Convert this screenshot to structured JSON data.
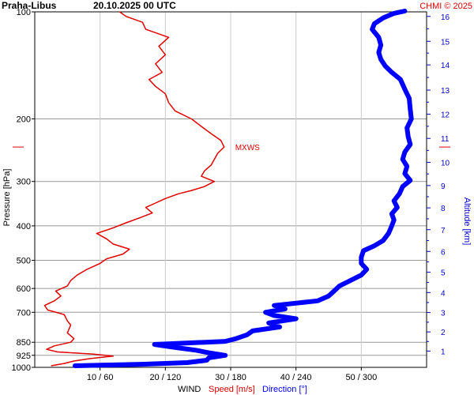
{
  "header": {
    "station": "Praha-Libus",
    "datetime": "20.10.2025 00 UTC",
    "credit": "CHMI © 2025"
  },
  "colors": {
    "speed": "#e00000",
    "direction": "#0000ff",
    "altitude": "#0000cc",
    "grid": "#999999",
    "gridLight": "#cccccc"
  },
  "chart_data": {
    "type": "line",
    "y_scale": "log",
    "ylim": [
      1000,
      100
    ],
    "ylabel": "Pressure [hPa]",
    "y_ticks": [
      {
        "value": 100,
        "label": "100"
      },
      {
        "value": 200,
        "label": "200"
      },
      {
        "value": 300,
        "label": "300"
      },
      {
        "value": 400,
        "label": "400"
      },
      {
        "value": 500,
        "label": "500"
      },
      {
        "value": 600,
        "label": "600"
      },
      {
        "value": 700,
        "label": "700"
      },
      {
        "value": 850,
        "label": "850"
      },
      {
        "value": 925,
        "label": "925"
      },
      {
        "value": 1000,
        "label": "1000"
      }
    ],
    "xlim_speed": [
      0,
      60
    ],
    "xlim_direction": [
      0,
      360
    ],
    "x_ticks": [
      {
        "speed": 10,
        "direction": 60,
        "label": "10 / 60"
      },
      {
        "speed": 20,
        "direction": 120,
        "label": "20 / 120"
      },
      {
        "speed": 30,
        "direction": 180,
        "label": "30 / 180"
      },
      {
        "speed": 40,
        "direction": 240,
        "label": "40 / 240"
      },
      {
        "speed": 50,
        "direction": 300,
        "label": "50 / 300"
      }
    ],
    "xlabel": {
      "prefix": "WIND",
      "speed": "Speed [m/s]",
      "direction": "Direction [°]"
    },
    "y2label": "Altitude [km]",
    "altitude_ticks_km": [
      {
        "km": 1,
        "pressure": 900
      },
      {
        "km": 2,
        "pressure": 795
      },
      {
        "km": 3,
        "pressure": 701
      },
      {
        "km": 4,
        "pressure": 616
      },
      {
        "km": 5,
        "pressure": 540
      },
      {
        "km": 6,
        "pressure": 472
      },
      {
        "km": 7,
        "pressure": 410
      },
      {
        "km": 8,
        "pressure": 356
      },
      {
        "km": 9,
        "pressure": 308
      },
      {
        "km": 10,
        "pressure": 265
      },
      {
        "km": 11,
        "pressure": 227
      },
      {
        "km": 12,
        "pressure": 194
      },
      {
        "km": 13,
        "pressure": 166
      },
      {
        "km": 14,
        "pressure": 141
      },
      {
        "km": 15,
        "pressure": 121
      },
      {
        "km": 16,
        "pressure": 103
      }
    ],
    "mxws": {
      "label": "MXWS",
      "pressure": 240,
      "speed": 29
    },
    "series": [
      {
        "name": "Speed [m/s]",
        "points": [
          [
            990,
            2.5
          ],
          [
            975,
            4.5
          ],
          [
            960,
            6.0
          ],
          [
            945,
            8.5
          ],
          [
            930,
            12.0
          ],
          [
            918,
            9.0
          ],
          [
            905,
            3.5
          ],
          [
            890,
            1.8
          ],
          [
            870,
            3.0
          ],
          [
            850,
            5.5
          ],
          [
            830,
            6.0
          ],
          [
            800,
            5.0
          ],
          [
            760,
            5.5
          ],
          [
            740,
            5.0
          ],
          [
            710,
            4.5
          ],
          [
            690,
            2.0
          ],
          [
            670,
            1.5
          ],
          [
            650,
            3.0
          ],
          [
            630,
            4.0
          ],
          [
            610,
            3.2
          ],
          [
            590,
            5.0
          ],
          [
            570,
            5.5
          ],
          [
            550,
            6.5
          ],
          [
            530,
            8.0
          ],
          [
            510,
            10.0
          ],
          [
            495,
            11.0
          ],
          [
            480,
            13.5
          ],
          [
            465,
            14.5
          ],
          [
            450,
            12.0
          ],
          [
            435,
            11.0
          ],
          [
            420,
            9.5
          ],
          [
            405,
            12.0
          ],
          [
            392,
            14.0
          ],
          [
            380,
            16.0
          ],
          [
            368,
            18.0
          ],
          [
            355,
            17.0
          ],
          [
            345,
            18.5
          ],
          [
            335,
            20.0
          ],
          [
            325,
            22.0
          ],
          [
            318,
            24.0
          ],
          [
            310,
            26.0
          ],
          [
            300,
            27.5
          ],
          [
            290,
            25.5
          ],
          [
            280,
            26.0
          ],
          [
            270,
            27.0
          ],
          [
            260,
            27.5
          ],
          [
            250,
            28.0
          ],
          [
            240,
            29.0
          ],
          [
            230,
            28.5
          ],
          [
            220,
            27.0
          ],
          [
            210,
            25.5
          ],
          [
            200,
            24.0
          ],
          [
            190,
            21.5
          ],
          [
            180,
            20.5
          ],
          [
            170,
            20.0
          ],
          [
            162,
            18.5
          ],
          [
            155,
            17.5
          ],
          [
            148,
            19.5
          ],
          [
            140,
            18.5
          ],
          [
            132,
            20.0
          ],
          [
            125,
            19.0
          ],
          [
            118,
            20.5
          ],
          [
            112,
            17.0
          ],
          [
            107,
            16.5
          ],
          [
            103,
            14.0
          ],
          [
            100,
            13.0
          ]
        ]
      },
      {
        "name": "Direction [°]",
        "points": [
          [
            990,
            37
          ],
          [
            980,
            98
          ],
          [
            970,
            140
          ],
          [
            955,
            158
          ],
          [
            940,
            160
          ],
          [
            925,
            175
          ],
          [
            910,
            160
          ],
          [
            895,
            148
          ],
          [
            880,
            130
          ],
          [
            862,
            110
          ],
          [
            845,
            175
          ],
          [
            830,
            185
          ],
          [
            810,
            195
          ],
          [
            790,
            200
          ],
          [
            770,
            225
          ],
          [
            750,
            215
          ],
          [
            730,
            240
          ],
          [
            715,
            220
          ],
          [
            700,
            212
          ],
          [
            685,
            230
          ],
          [
            670,
            220
          ],
          [
            650,
            260
          ],
          [
            630,
            270
          ],
          [
            610,
            275
          ],
          [
            590,
            280
          ],
          [
            570,
            290
          ],
          [
            550,
            300
          ],
          [
            530,
            305
          ],
          [
            510,
            300
          ],
          [
            490,
            300
          ],
          [
            470,
            302
          ],
          [
            455,
            312
          ],
          [
            440,
            320
          ],
          [
            420,
            325
          ],
          [
            400,
            328
          ],
          [
            385,
            330
          ],
          [
            370,
            328
          ],
          [
            355,
            333
          ],
          [
            340,
            330
          ],
          [
            325,
            335
          ],
          [
            310,
            338
          ],
          [
            298,
            345
          ],
          [
            285,
            340
          ],
          [
            272,
            342
          ],
          [
            260,
            338
          ],
          [
            248,
            340
          ],
          [
            236,
            345
          ],
          [
            224,
            343
          ],
          [
            212,
            342
          ],
          [
            200,
            346
          ],
          [
            188,
            345
          ],
          [
            175,
            344
          ],
          [
            165,
            340
          ],
          [
            155,
            336
          ],
          [
            148,
            328
          ],
          [
            142,
            322
          ],
          [
            136,
            318
          ],
          [
            130,
            316
          ],
          [
            124,
            318
          ],
          [
            118,
            316
          ],
          [
            112,
            310
          ],
          [
            108,
            312
          ],
          [
            104,
            320
          ],
          [
            101,
            330
          ],
          [
            99.5,
            340
          ]
        ]
      }
    ]
  }
}
